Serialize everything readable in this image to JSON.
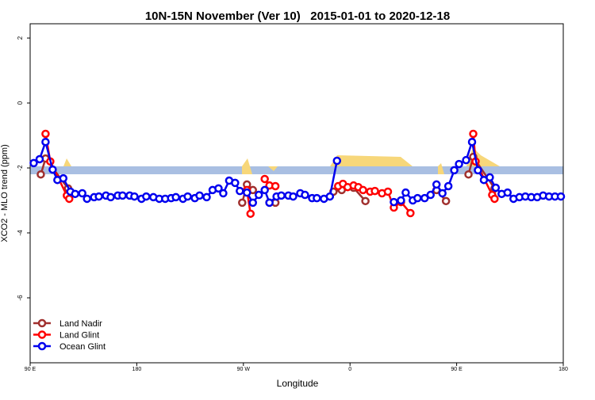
{
  "chart_data": {
    "type": "line",
    "title": "10N-15N November (Ver 10)   2015-01-01 to 2020-12-18",
    "x_label": "Longitude",
    "y_label": "XCO2 - MLO trend (ppm)",
    "xlim": [
      90,
      540
    ],
    "ylim": [
      -8,
      2.44
    ],
    "xticks": [
      {
        "value": 90,
        "label": "90 E"
      },
      {
        "value": 180,
        "label": "180"
      },
      {
        "value": 270,
        "label": "90 W"
      },
      {
        "value": 360,
        "label": "0"
      },
      {
        "value": 450,
        "label": "90 E"
      },
      {
        "value": 540,
        "label": "180"
      }
    ],
    "yticks": [
      2,
      0,
      -2,
      -4,
      -6
    ],
    "legend": "bottom-left",
    "series": [
      {
        "name": "Land Nadir",
        "color": "#a0302e",
        "x": [
          99,
          103,
          122,
          null,
          269,
          273,
          278,
          null,
          292,
          297,
          null,
          346,
          353,
          363,
          373,
          null,
          433,
          441,
          null,
          460,
          464,
          482
        ],
        "values": [
          -2.2,
          -1.71,
          -2.63,
          null,
          -3.07,
          -2.51,
          -2.68,
          null,
          -3.07,
          -3.07,
          null,
          -2.73,
          -2.68,
          -2.61,
          -3.02,
          null,
          -2.68,
          -3.02,
          null,
          -2.2,
          -1.66,
          -2.63
        ]
      },
      {
        "name": "Land Glint",
        "color": "#ff0000",
        "x": [
          103,
          107,
          121,
          123,
          null,
          273,
          276,
          null,
          288,
          292,
          297,
          null,
          350,
          354,
          358,
          363,
          367,
          371,
          377,
          381,
          387,
          392,
          397,
          403,
          411,
          null,
          464,
          466,
          480,
          482
        ],
        "values": [
          -0.95,
          -1.8,
          -2.85,
          -2.95,
          null,
          -2.68,
          -3.41,
          null,
          -2.34,
          -2.54,
          -2.56,
          null,
          -2.56,
          -2.49,
          -2.59,
          -2.54,
          -2.59,
          -2.68,
          -2.73,
          -2.71,
          -2.78,
          -2.73,
          -3.22,
          -3.05,
          -3.39,
          null,
          -0.95,
          -1.8,
          -2.83,
          -2.95
        ]
      },
      {
        "name": "Ocean Glint",
        "color": "#0000ee",
        "x": [
          93,
          98,
          103,
          109,
          113,
          118,
          124,
          128,
          134,
          138,
          144,
          148,
          154,
          158,
          164,
          168,
          174,
          178,
          184,
          188,
          194,
          199,
          204,
          209,
          213,
          219,
          223,
          229,
          233,
          239,
          244,
          249,
          253,
          258,
          263,
          267,
          273,
          278,
          283,
          288,
          292,
          298,
          302,
          308,
          312,
          318,
          322,
          328,
          332,
          338,
          343,
          349,
          null,
          397,
          403,
          407,
          413,
          417,
          423,
          428,
          433,
          438,
          443,
          448,
          452,
          458,
          463,
          468,
          473,
          478,
          483,
          488,
          493,
          498,
          503,
          508,
          513,
          518,
          523,
          528,
          533,
          538
        ],
        "values": [
          -1.85,
          -1.73,
          -1.2,
          -2.05,
          -2.37,
          -2.32,
          -2.73,
          -2.8,
          -2.78,
          -2.95,
          -2.9,
          -2.88,
          -2.85,
          -2.9,
          -2.85,
          -2.85,
          -2.85,
          -2.88,
          -2.95,
          -2.88,
          -2.9,
          -2.95,
          -2.95,
          -2.93,
          -2.9,
          -2.95,
          -2.88,
          -2.93,
          -2.85,
          -2.9,
          -2.68,
          -2.63,
          -2.78,
          -2.39,
          -2.46,
          -2.71,
          -2.76,
          -3.07,
          -2.83,
          -2.68,
          -3.07,
          -2.88,
          -2.85,
          -2.85,
          -2.88,
          -2.78,
          -2.83,
          -2.93,
          -2.93,
          -2.95,
          -2.88,
          -1.78,
          null,
          -3.05,
          -3.0,
          -2.76,
          -3.0,
          -2.93,
          -2.93,
          -2.83,
          -2.51,
          -2.78,
          -2.56,
          -2.07,
          -1.88,
          -1.76,
          -1.2,
          -2.07,
          -2.37,
          -2.29,
          -2.61,
          -2.8,
          -2.76,
          -2.95,
          -2.9,
          -2.88,
          -2.9,
          -2.9,
          -2.85,
          -2.88,
          -2.88,
          -2.88
        ]
      }
    ]
  }
}
